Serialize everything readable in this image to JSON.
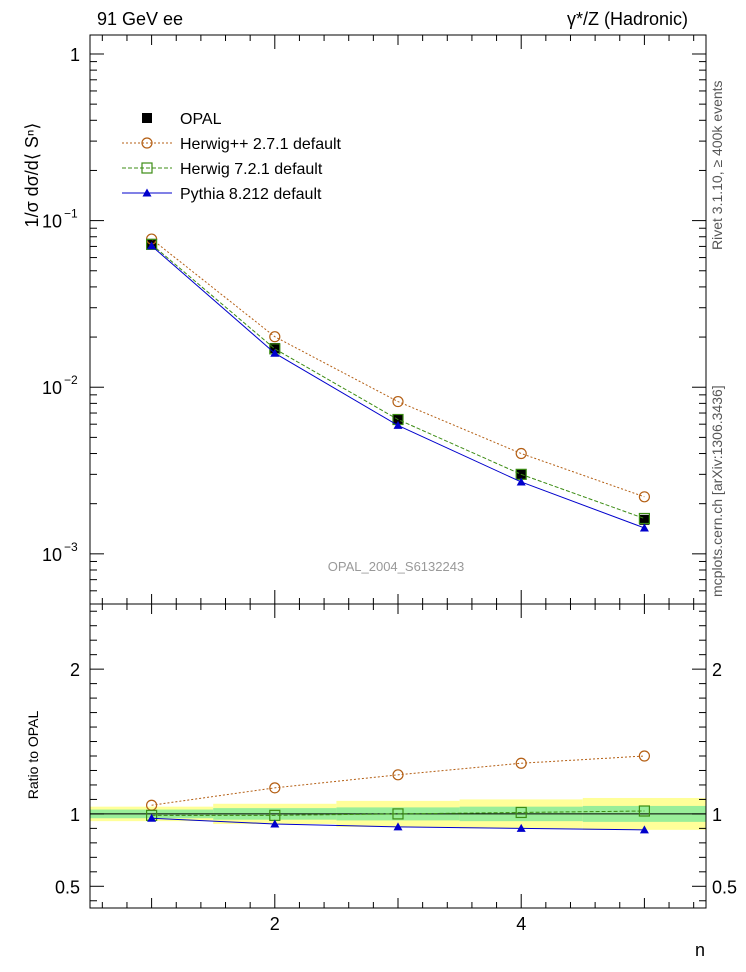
{
  "header": {
    "left": "91 GeV ee",
    "right": "γ*/Z (Hadronic)"
  },
  "side_labels": {
    "top": "Rivet 3.1.10, ≥ 400k events",
    "bottom": "mcplots.cern.ch [arXiv:1306.3436]"
  },
  "watermark": "OPAL_2004_S6132243",
  "chart_data": [
    {
      "type": "scatter",
      "panel": "main",
      "ylabel": "1/σ dσ/d⟨ Sⁿ⟩",
      "yscale": "log",
      "ylim": [
        0.0005,
        1.3
      ],
      "xlim": [
        0.5,
        5.5
      ],
      "yticks": [
        {
          "v": 0.001,
          "base": "10",
          "exp": "−3"
        },
        {
          "v": 0.01,
          "base": "10",
          "exp": "−2"
        },
        {
          "v": 0.1,
          "base": "10",
          "exp": "−1"
        },
        {
          "v": 1,
          "base": "1",
          "exp": ""
        }
      ],
      "legend_position": "top-left",
      "series": [
        {
          "name": "OPAL",
          "color": "#000000",
          "marker": "filled-square",
          "line": "none",
          "x": [
            1,
            2,
            3,
            4,
            5
          ],
          "y": [
            0.0725,
            0.0172,
            0.0064,
            0.003,
            0.0016
          ]
        },
        {
          "name": "Herwig++ 2.7.1 default",
          "color": "#b45f14",
          "marker": "open-circle",
          "line": "dotted",
          "x": [
            1,
            2,
            3,
            4,
            5
          ],
          "y": [
            0.0775,
            0.0201,
            0.0082,
            0.004,
            0.0022
          ]
        },
        {
          "name": "Herwig 7.2.1 default",
          "color": "#3c8c14",
          "marker": "open-square",
          "line": "dashed",
          "x": [
            1,
            2,
            3,
            4,
            5
          ],
          "y": [
            0.072,
            0.017,
            0.0064,
            0.003,
            0.00163
          ]
        },
        {
          "name": "Pythia 8.212 default",
          "color": "#0000cc",
          "marker": "filled-triangle",
          "line": "solid",
          "x": [
            1,
            2,
            3,
            4,
            5
          ],
          "y": [
            0.0705,
            0.016,
            0.0059,
            0.0027,
            0.00143
          ]
        }
      ]
    },
    {
      "type": "scatter",
      "panel": "ratio",
      "ylabel": "Ratio to OPAL",
      "xlabel": "n",
      "ylim": [
        0.35,
        2.45
      ],
      "xlim": [
        0.5,
        5.5
      ],
      "xticks": [
        2,
        4
      ],
      "yticks": [
        0.5,
        1,
        2
      ],
      "bands": [
        {
          "name": "total",
          "color": "#ffff99",
          "edges": [
            0.5,
            1.5,
            2.5,
            3.5,
            4.5,
            5.5
          ],
          "lo": [
            0.95,
            0.93,
            0.91,
            0.9,
            0.89
          ],
          "hi": [
            1.05,
            1.07,
            1.09,
            1.1,
            1.11
          ]
        },
        {
          "name": "stat",
          "color": "#99ee99",
          "edges": [
            0.5,
            1.5,
            2.5,
            3.5,
            4.5,
            5.5
          ],
          "lo": [
            0.97,
            0.96,
            0.955,
            0.95,
            0.945
          ],
          "hi": [
            1.03,
            1.04,
            1.045,
            1.05,
            1.055
          ]
        }
      ],
      "series": [
        {
          "name": "Herwig++ 2.7.1 default",
          "color": "#b45f14",
          "marker": "open-circle",
          "line": "dotted",
          "x": [
            1,
            2,
            3,
            4,
            5
          ],
          "y": [
            1.06,
            1.18,
            1.27,
            1.35,
            1.4
          ]
        },
        {
          "name": "Herwig 7.2.1 default",
          "color": "#3c8c14",
          "marker": "open-square",
          "line": "dashed",
          "x": [
            1,
            2,
            3,
            4,
            5
          ],
          "y": [
            0.99,
            0.99,
            1.0,
            1.01,
            1.02
          ]
        },
        {
          "name": "Pythia 8.212 default",
          "color": "#0000cc",
          "marker": "filled-triangle",
          "line": "solid",
          "x": [
            1,
            2,
            3,
            4,
            5
          ],
          "y": [
            0.97,
            0.93,
            0.91,
            0.9,
            0.89
          ]
        }
      ]
    }
  ]
}
